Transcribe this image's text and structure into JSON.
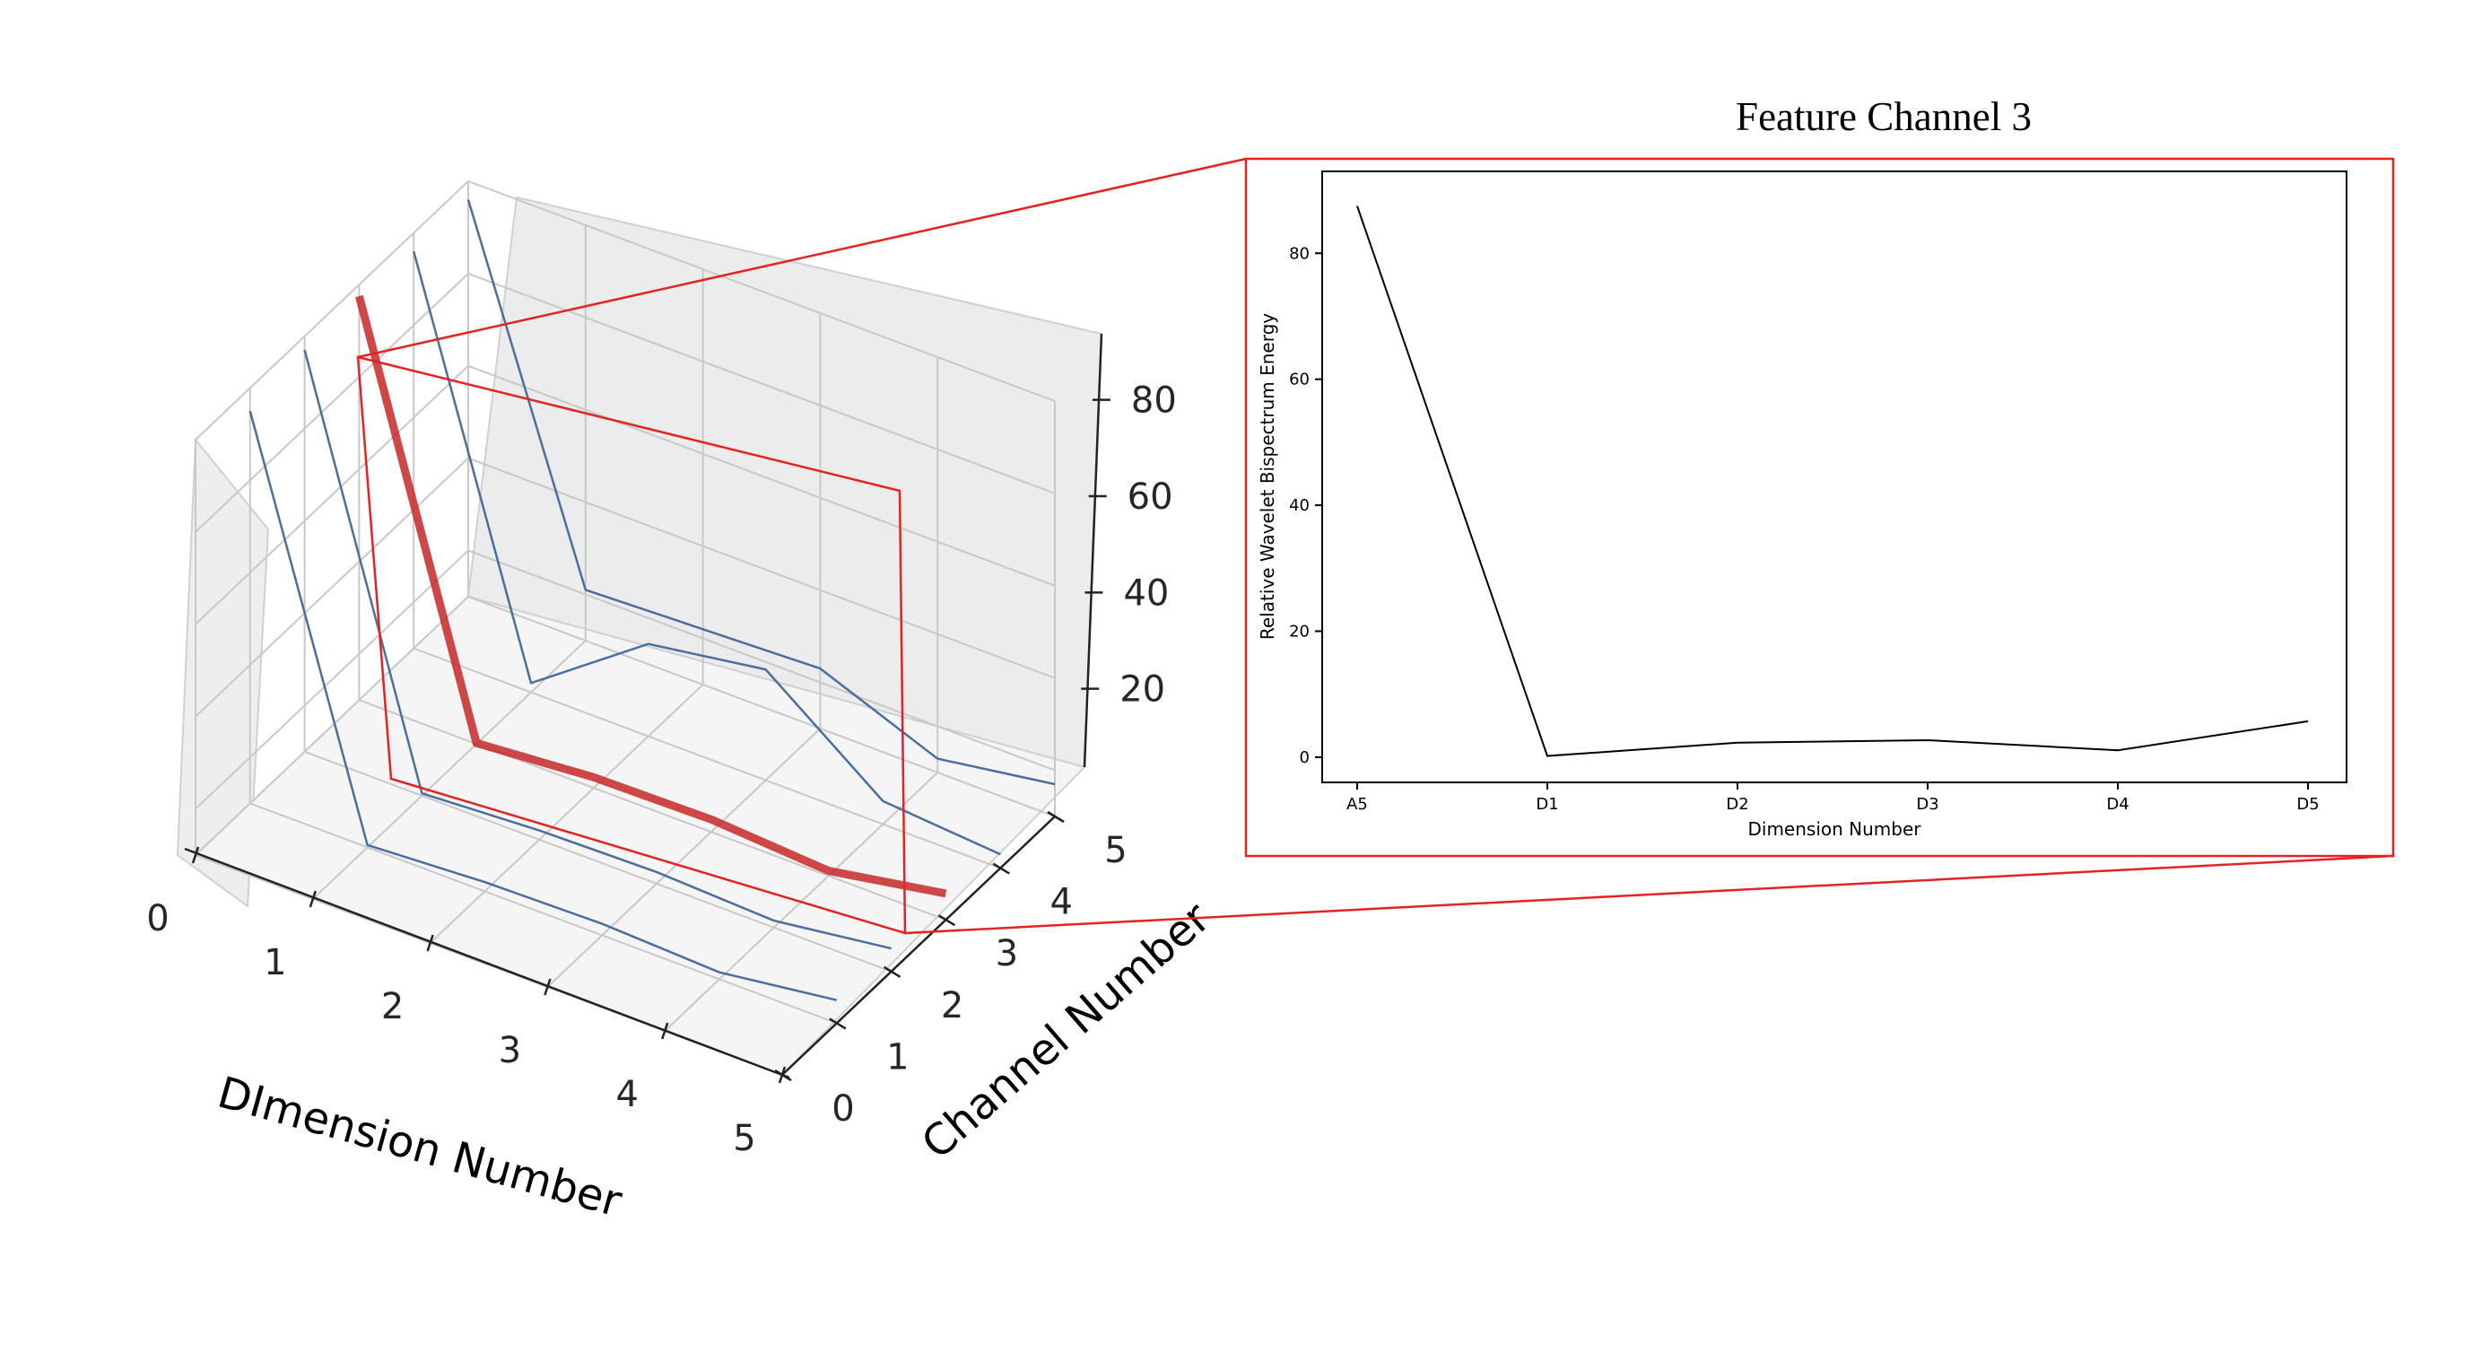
{
  "chart_data": [
    {
      "type": "line",
      "projection": "3d",
      "x_ticks": [
        "0",
        "1",
        "2",
        "3",
        "4",
        "5"
      ],
      "y_ticks": [
        "0",
        "1",
        "2",
        "3",
        "4",
        "5"
      ],
      "z_ticks": [
        "20",
        "40",
        "60",
        "80"
      ],
      "xlabel": "DImension Number",
      "ylabel": "Channel Number",
      "zlim": [
        0,
        90
      ],
      "grid": true,
      "highlighted_channel": 3,
      "colors": {
        "series": "#4b6f9c",
        "highlight": "#c62828",
        "connector": "#e52222"
      },
      "series": [
        {
          "channel": 1,
          "values": [
            85,
            0.5,
            2,
            2.5,
            1.5,
            5
          ]
        },
        {
          "channel": 2,
          "values": [
            87,
            0.5,
            2,
            2.5,
            1.5,
            5
          ]
        },
        {
          "channel": 3,
          "values": [
            87.5,
            0.2,
            2.3,
            2.7,
            1.1,
            5.7
          ]
        },
        {
          "channel": 4,
          "values": [
            86,
            2,
            20,
            24,
            5,
            3
          ]
        },
        {
          "channel": 5,
          "values": [
            86,
            11,
            12,
            13,
            3,
            7
          ]
        }
      ]
    },
    {
      "type": "line",
      "title": "Feature Channel 3",
      "categories": [
        "A5",
        "D1",
        "D2",
        "D3",
        "D4",
        "D5"
      ],
      "values": [
        87.5,
        0.2,
        2.3,
        2.7,
        1.1,
        5.7
      ],
      "xlabel": "Dimension Number",
      "ylabel": "Relative Wavelet Bispectrum Energy",
      "yticks": [
        0,
        20,
        40,
        60,
        80
      ],
      "ylim": [
        -4,
        93
      ],
      "color": "#000000"
    }
  ]
}
